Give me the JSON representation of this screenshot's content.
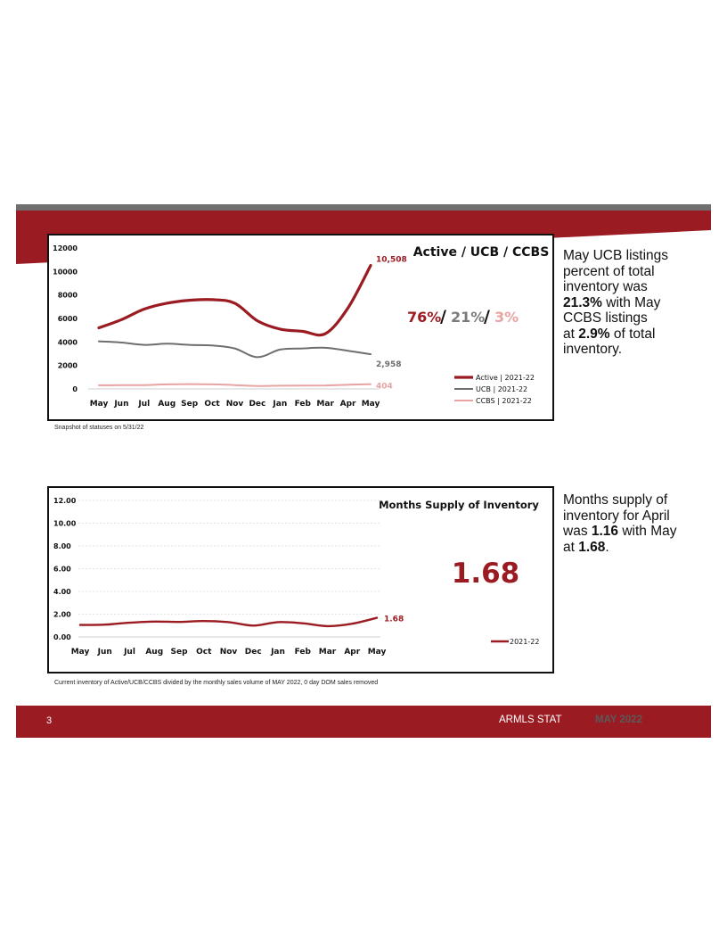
{
  "chart_data": [
    {
      "type": "line",
      "title": "Active / UCB / CCBS",
      "categories": [
        "May",
        "Jun",
        "Jul",
        "Aug",
        "Sep",
        "Oct",
        "Nov",
        "Dec",
        "Jan",
        "Feb",
        "Mar",
        "Apr",
        "May"
      ],
      "ylim": [
        0,
        12000
      ],
      "yticks": [
        "12000",
        "10000",
        "8000",
        "6000",
        "4000",
        "2000",
        "0"
      ],
      "series": [
        {
          "name": "Active | 2021-22",
          "color": "#9b1b22",
          "width": 3.2,
          "values": [
            5200,
            5900,
            6800,
            7300,
            7550,
            7600,
            7300,
            5800,
            5100,
            4900,
            4700,
            6900,
            10508
          ],
          "end_label": "10,508"
        },
        {
          "name": "UCB | 2021-22",
          "color": "#6e6e6e",
          "width": 2,
          "values": [
            4050,
            3950,
            3750,
            3850,
            3750,
            3700,
            3450,
            2700,
            3350,
            3450,
            3500,
            3250,
            2958
          ],
          "end_label": "2,958"
        },
        {
          "name": "CCBS | 2021-22",
          "color": "#e8a3a3",
          "width": 2,
          "values": [
            310,
            320,
            330,
            390,
            410,
            390,
            330,
            250,
            270,
            280,
            300,
            360,
            404
          ],
          "end_label": "404"
        }
      ],
      "share_labels": [
        {
          "text": "76%",
          "color": "#9b1b22"
        },
        {
          "text": "/",
          "color": "#111111"
        },
        {
          "text": "21%",
          "color": "#7a7a7a"
        },
        {
          "text": "/",
          "color": "#111111"
        },
        {
          "text": "3%",
          "color": "#e8a3a3"
        }
      ],
      "grid": false,
      "legend_position": "bottom-right"
    },
    {
      "type": "line",
      "title": "Months Supply of Inventory",
      "categories": [
        "May",
        "Jun",
        "Jul",
        "Aug",
        "Sep",
        "Oct",
        "Nov",
        "Dec",
        "Jan",
        "Feb",
        "Mar",
        "Apr",
        "May"
      ],
      "ylim": [
        0,
        12
      ],
      "yticks": [
        "12.00",
        "10.00",
        "8.00",
        "6.00",
        "4.00",
        "2.00",
        "0.00"
      ],
      "series": [
        {
          "name": "2021-22",
          "color": "#9b1b22",
          "width": 2.4,
          "values": [
            1.05,
            1.08,
            1.25,
            1.35,
            1.32,
            1.4,
            1.3,
            1.0,
            1.3,
            1.2,
            0.95,
            1.16,
            1.68
          ],
          "end_label": "1.68"
        }
      ],
      "big_value": "1.68",
      "grid": true,
      "legend_position": "bottom-right"
    }
  ],
  "notes": {
    "snapshot": "Snapshot of statuses on 5/31/22",
    "inventory": "Current inventory of Active/UCB/CCBS divided by the monthly sales volume of MAY 2022, 0 day DOM sales removed"
  },
  "side": {
    "ucb": {
      "l1": "May UCB listings",
      "l2": "percent of total",
      "l3": "inventory was",
      "l4_bold": "21.3%",
      "l4_rest": " with May",
      "l5": "CCBS listings",
      "l6_pre": "at ",
      "l6_bold": "2.9%",
      "l6_rest": " of total",
      "l7": "inventory."
    },
    "supply": {
      "l1": "Months supply of",
      "l2": "inventory for April",
      "l3_pre": "was ",
      "l3_bold": "1.16",
      "l3_rest": " with May",
      "l4_pre": "at ",
      "l4_bold": "1.68",
      "l4_rest": "."
    }
  },
  "footer": {
    "page": "3",
    "brand": "ARMLS STAT",
    "date": "MAY 2022"
  },
  "colors": {
    "brand_red": "#9b1b22",
    "gray": "#6e6e6e",
    "pink": "#e8a3a3"
  }
}
